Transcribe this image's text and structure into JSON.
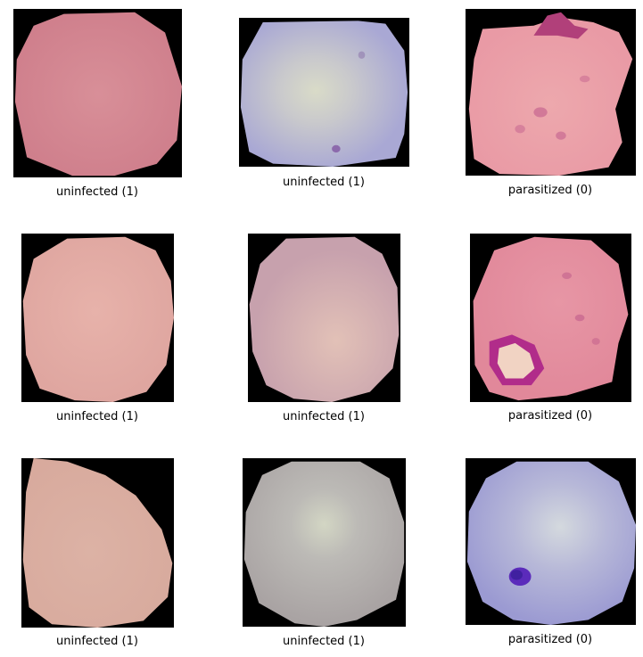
{
  "cells": [
    {
      "label": "uninfected (1)",
      "cell_color": "#cf7f8c",
      "center_color": "#d88f98",
      "status": "uninfected"
    },
    {
      "label": "uninfected (1)",
      "cell_color": "#a9a8d4",
      "center_color": "#d9dbc8",
      "status": "uninfected"
    },
    {
      "label": "parasitized (0)",
      "cell_color": "#e99aa5",
      "center_color": "#eda8ad",
      "status": "parasitized",
      "stain_color": "#b1407a"
    },
    {
      "label": "uninfected (1)",
      "cell_color": "#dfa6a0",
      "center_color": "#e7b2aa",
      "status": "uninfected"
    },
    {
      "label": "uninfected (1)",
      "cell_color": "#c7a1ad",
      "center_color": "#e2c1b7",
      "status": "uninfected"
    },
    {
      "label": "parasitized (0)",
      "cell_color": "#e1889a",
      "center_color": "#e796a5",
      "status": "parasitized",
      "stain_color": "#b12c8a"
    },
    {
      "label": "uninfected (1)",
      "cell_color": "#d8aa9d",
      "center_color": "#dcb2a5",
      "status": "uninfected"
    },
    {
      "label": "uninfected (1)",
      "cell_color": "#a9a3a3",
      "center_color": "#d3d6c4",
      "status": "uninfected"
    },
    {
      "label": "parasitized (0)",
      "cell_color": "#9b9ad2",
      "center_color": "#d4d9de",
      "status": "parasitized",
      "stain_color": "#5b2bbb"
    }
  ]
}
